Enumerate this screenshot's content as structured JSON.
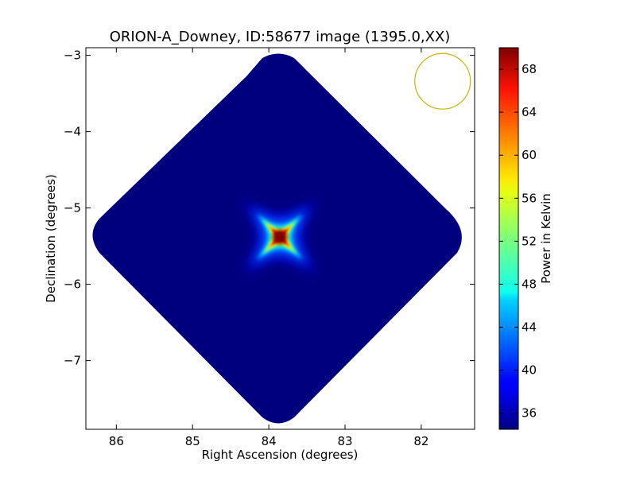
{
  "chart_data": {
    "type": "heatmap",
    "title": "ORION-A_Downey, ID:58677 image (1395.0,XX)",
    "xlabel": "Right Ascension (degrees)",
    "ylabel": "Declination (degrees)",
    "xlim": [
      86.4,
      81.3
    ],
    "ylim": [
      -7.9,
      -2.9
    ],
    "x_ticks": [
      86,
      85,
      84,
      83,
      82
    ],
    "x_tick_labels": [
      "86",
      "85",
      "84",
      "83",
      "82"
    ],
    "y_ticks": [
      -3,
      -4,
      -5,
      -6,
      -7
    ],
    "y_tick_labels": [
      "−3",
      "−4",
      "−5",
      "−6",
      "−7"
    ],
    "colormap": "jet",
    "colorbar": {
      "label": "Power in Kelvin",
      "range": [
        34.5,
        70
      ],
      "ticks": [
        36,
        40,
        44,
        48,
        52,
        56,
        60,
        64,
        68
      ],
      "tick_labels": [
        "36",
        "40",
        "44",
        "48",
        "52",
        "56",
        "60",
        "64",
        "68"
      ]
    },
    "peak": {
      "ra": 83.8,
      "dec": -5.38,
      "value": 70
    },
    "background_value": 35,
    "beam": {
      "ra": 81.72,
      "dec": -3.34,
      "radius_deg": 0.37,
      "color": "#c8b400"
    }
  }
}
